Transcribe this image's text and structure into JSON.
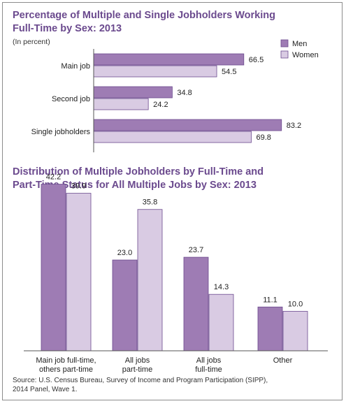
{
  "chart_data": [
    {
      "type": "bar",
      "orientation": "horizontal",
      "title": [
        "Percentage of Multiple and Single Jobholders Working",
        "Full-Time by Sex: 2013"
      ],
      "subtitle": "(In percent)",
      "categories": [
        "Main job",
        "Second job",
        "Single jobholders"
      ],
      "series": [
        {
          "name": "Men",
          "values": [
            66.5,
            34.8,
            83.2
          ],
          "color": "#9e7cb4"
        },
        {
          "name": "Women",
          "values": [
            54.5,
            24.2,
            69.8
          ],
          "color": "#d9cbe3"
        }
      ],
      "value_labels": {
        "Men": [
          "66.5",
          "34.8",
          "83.2"
        ],
        "Women": [
          "54.5",
          "24.2",
          "69.8"
        ]
      },
      "xlim": [
        0,
        100
      ],
      "legend": "top-right"
    },
    {
      "type": "bar",
      "orientation": "vertical",
      "title": [
        "Distribution of Multiple Jobholders by Full-Time and",
        "Part-Time Status for All Multiple Jobs by Sex: 2013"
      ],
      "categories": [
        [
          "Main job full-time,",
          "others part-time"
        ],
        [
          "All jobs",
          "part-time"
        ],
        [
          "All jobs",
          "full-time"
        ],
        [
          "Other"
        ]
      ],
      "series": [
        {
          "name": "Men",
          "values": [
            42.2,
            23.0,
            23.7,
            11.1
          ],
          "color": "#9e7cb4"
        },
        {
          "name": "Women",
          "values": [
            39.9,
            35.8,
            14.3,
            10.0
          ],
          "color": "#d9cbe3"
        }
      ],
      "value_labels": {
        "Men": [
          "42.2",
          "23.0",
          "23.7",
          "11.1"
        ],
        "Women": [
          "39.9",
          "35.8",
          "14.3",
          "10.0"
        ]
      },
      "ylim": [
        0,
        50
      ]
    }
  ],
  "source": [
    "Source: U.S. Census Bureau, Survey of Income and Program Participation (SIPP),",
    "2014 Panel, Wave 1."
  ]
}
